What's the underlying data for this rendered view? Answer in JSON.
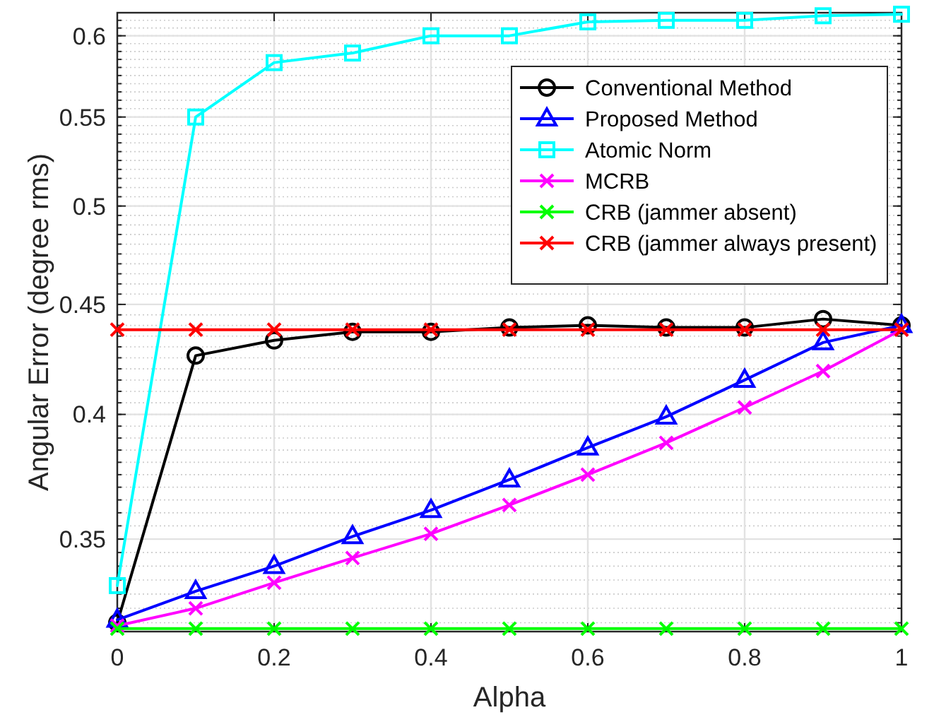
{
  "chart_data": {
    "type": "line",
    "xlabel": "Alpha",
    "ylabel": "Angular Error (degree rms)",
    "x": [
      0,
      0.1,
      0.2,
      0.3,
      0.4,
      0.5,
      0.6,
      0.7,
      0.8,
      0.9,
      1
    ],
    "series": [
      {
        "name": "Conventional Method",
        "color": "#000000",
        "marker": "circle",
        "values": [
          0.32,
          0.426,
          0.433,
          0.437,
          0.437,
          0.439,
          0.44,
          0.439,
          0.439,
          0.443,
          0.44
        ]
      },
      {
        "name": "Proposed Method",
        "color": "#0000ff",
        "marker": "triangle",
        "values": [
          0.321,
          0.331,
          0.34,
          0.351,
          0.361,
          0.373,
          0.386,
          0.399,
          0.415,
          0.432,
          0.44
        ]
      },
      {
        "name": "Atomic Norm",
        "color": "#00ffff",
        "marker": "square",
        "values": [
          0.333,
          0.55,
          0.583,
          0.589,
          0.6,
          0.6,
          0.609,
          0.61,
          0.61,
          0.613,
          0.614
        ]
      },
      {
        "name": "MCRB",
        "color": "#ff00ff",
        "marker": "cross",
        "values": [
          0.319,
          0.325,
          0.334,
          0.343,
          0.352,
          0.363,
          0.375,
          0.388,
          0.403,
          0.419,
          0.438
        ]
      },
      {
        "name": "CRB (jammer absent)",
        "color": "#00ff00",
        "marker": "cross",
        "values": [
          0.318,
          0.318,
          0.318,
          0.318,
          0.318,
          0.318,
          0.318,
          0.318,
          0.318,
          0.318,
          0.318
        ]
      },
      {
        "name": "CRB (jammer always present)",
        "color": "#ff0000",
        "marker": "cross",
        "values": [
          0.438,
          0.438,
          0.438,
          0.438,
          0.438,
          0.438,
          0.438,
          0.438,
          0.438,
          0.438,
          0.438
        ]
      }
    ],
    "xlim": [
      0,
      1
    ],
    "xticks": [
      0,
      0.2,
      0.4,
      0.6,
      0.8,
      1
    ],
    "ylim": [
      0.317,
      0.615
    ],
    "yticks": [
      0.35,
      0.4,
      0.45,
      0.5,
      0.55,
      0.6
    ],
    "log": "y",
    "grid": true,
    "legend": "top right"
  }
}
